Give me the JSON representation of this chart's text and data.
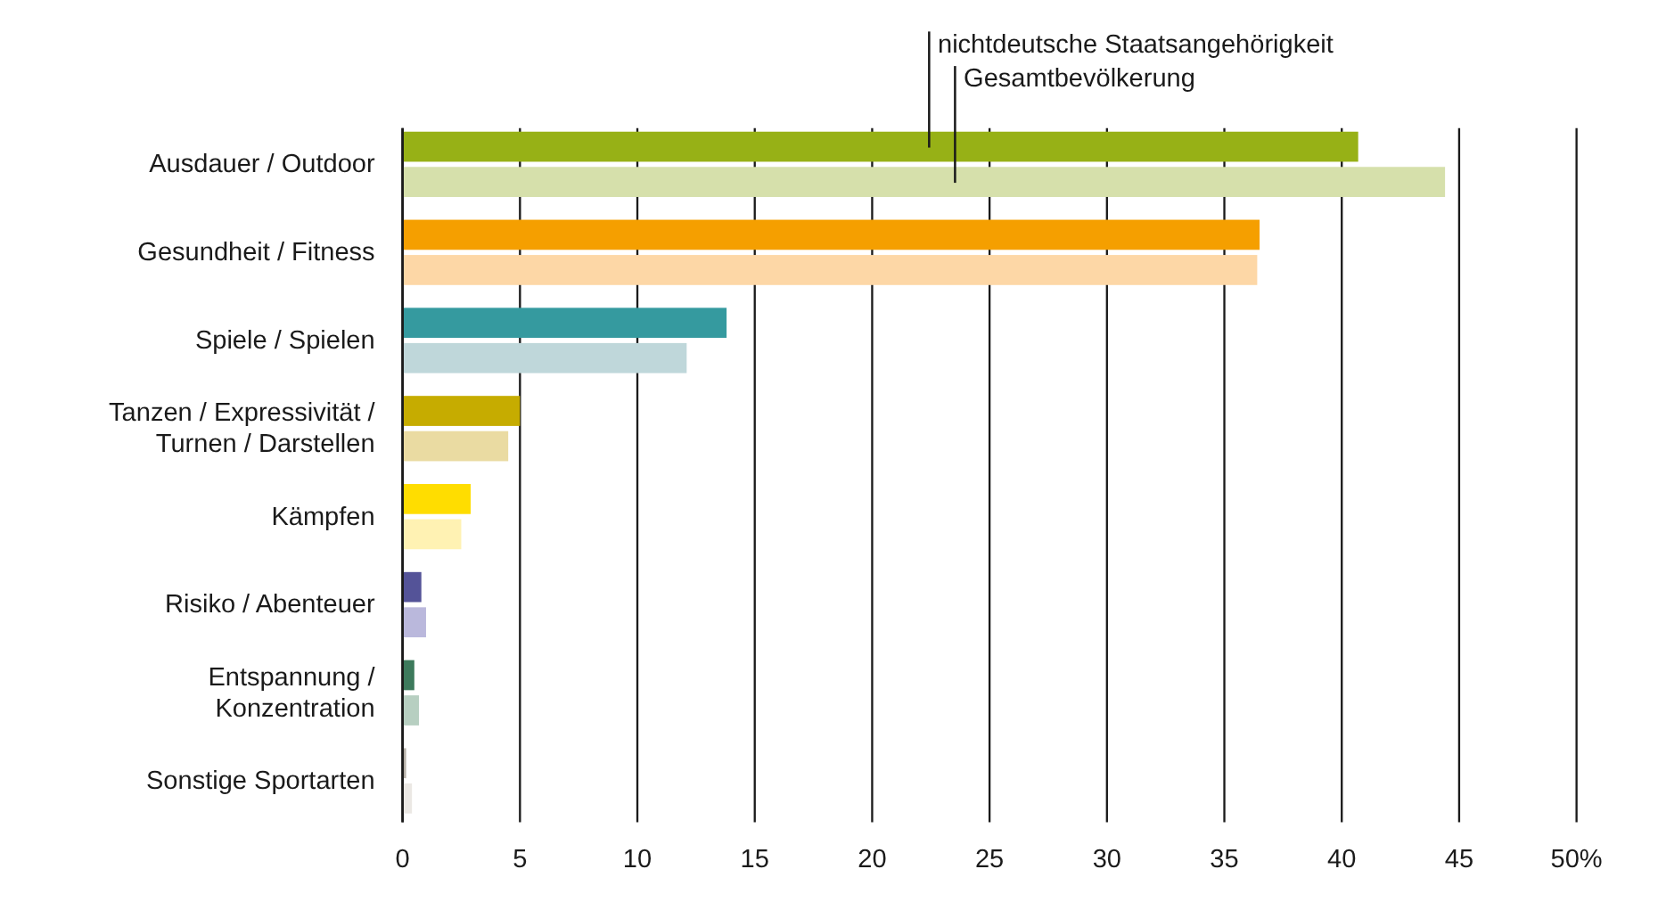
{
  "chart_data": {
    "type": "bar",
    "orientation": "horizontal",
    "categories": [
      "Ausdauer / Outdoor",
      "Gesundheit / Fitness",
      "Spiele / Spielen",
      "Tanzen / Expressivität / Turnen / Darstellen",
      "Kämpfen",
      "Risiko / Abenteuer",
      "Entspannung / Konzentration",
      "Sonstige Sportarten"
    ],
    "series": [
      {
        "name": "nichtdeutsche Staatsangehörigkeit",
        "colors": [
          "#97b116",
          "#f59f00",
          "#359a9f",
          "#c6ac00",
          "#ffdd00",
          "#545398",
          "#3d7a5c",
          "#b6b0a8"
        ],
        "values": [
          40.7,
          36.5,
          13.8,
          5.0,
          2.9,
          0.8,
          0.5,
          0.15
        ]
      },
      {
        "name": "Gesamtbevölkerung",
        "colors": [
          "#d6e0ab",
          "#fdd7a6",
          "#bfd7da",
          "#eadba2",
          "#fff2b3",
          "#bab8dc",
          "#b7cfc1",
          "#ebe8e4"
        ],
        "values": [
          44.4,
          36.4,
          12.1,
          4.5,
          2.5,
          1.0,
          0.7,
          0.4
        ]
      }
    ],
    "xlim": [
      0,
      50
    ],
    "xticks": [
      0,
      5,
      10,
      15,
      20,
      25,
      30,
      35,
      40,
      45,
      {
        "value": 50,
        "label": "50%"
      }
    ],
    "grid": "x",
    "legend": "top"
  }
}
